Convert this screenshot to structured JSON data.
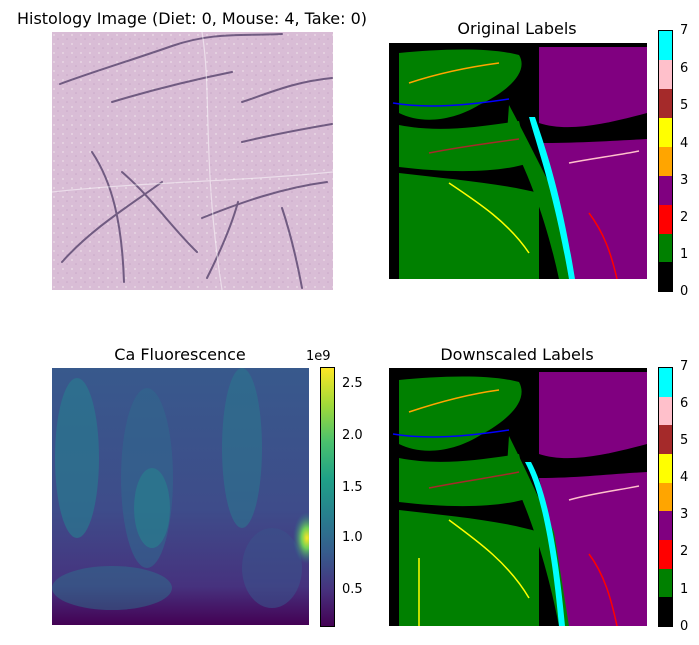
{
  "panels": {
    "histology": {
      "title": "Histology Image (Diet: 0, Mouse: 4, Take: 0)"
    },
    "original": {
      "title": "Original Labels"
    },
    "fluorescence": {
      "title": "Ca Fluorescence",
      "colorbar_exponent": "1e9"
    },
    "downscaled": {
      "title": "Downscaled Labels"
    }
  },
  "colors": {
    "label_palette": [
      "#000000",
      "#0000ff",
      "#008000",
      "#800080",
      "#ffa500",
      "#ffff00",
      "#a52a2a",
      "#ffc0cb",
      "#00ffff"
    ],
    "viridis": [
      "#440154",
      "#46327e",
      "#365c8d",
      "#277f8e",
      "#1fa187",
      "#4ac16d",
      "#a0da39",
      "#fde725"
    ],
    "histology_base": "#dcc0d8"
  },
  "chart_data": [
    {
      "type": "image",
      "title": "Histology Image (Diet: 0, Mouse: 4, Take: 0)"
    },
    {
      "type": "heatmap",
      "title": "Original Labels",
      "colorbar": {
        "ticks": [
          "0",
          "1",
          "2",
          "3",
          "4",
          "5",
          "6",
          "7"
        ],
        "range": [
          0,
          7
        ]
      },
      "label_colors": [
        "black",
        "blue",
        "green",
        "purple",
        "orange",
        "yellow",
        "brown",
        "pink",
        "cyan"
      ]
    },
    {
      "type": "heatmap",
      "title": "Ca Fluorescence",
      "colorbar": {
        "ticks": [
          "0.5",
          "1.0",
          "1.5",
          "2.0",
          "2.5"
        ],
        "exponent": "1e9",
        "range": [
          0.15,
          2.65
        ]
      },
      "colormap": "viridis"
    },
    {
      "type": "heatmap",
      "title": "Downscaled Labels",
      "colorbar": {
        "ticks": [
          "0",
          "1",
          "2",
          "3",
          "4",
          "5",
          "6",
          "7"
        ],
        "range": [
          0,
          7
        ]
      },
      "label_colors": [
        "black",
        "blue",
        "green",
        "purple",
        "orange",
        "yellow",
        "brown",
        "pink",
        "cyan"
      ]
    }
  ]
}
